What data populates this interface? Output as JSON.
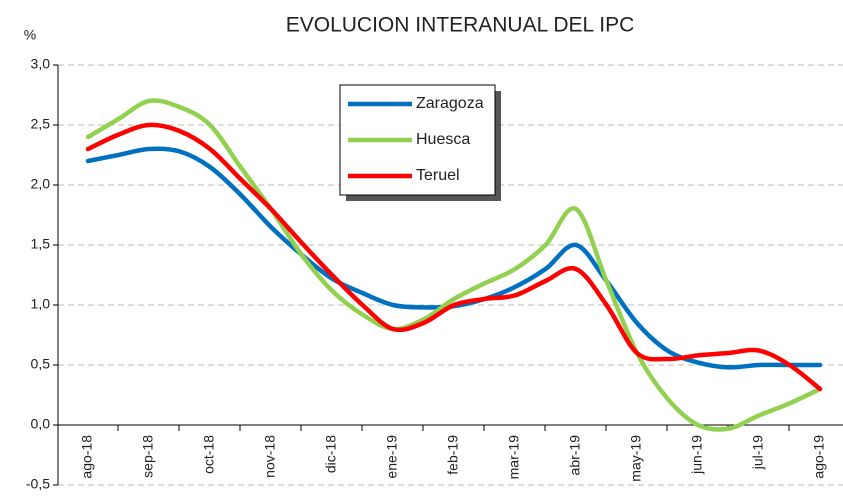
{
  "chart_data": {
    "type": "line",
    "title": "EVOLUCION INTERANUAL DEL IPC",
    "ylabel": "%",
    "categories": [
      "ago-18",
      null,
      "sep-18",
      null,
      "oct-18",
      null,
      "nov-18",
      null,
      "dic-18",
      null,
      "ene-19",
      null,
      "feb-19",
      null,
      "mar-19",
      null,
      "abr-19",
      null,
      "may-19",
      null,
      "jun-19",
      null,
      "jul-19",
      null,
      "ago-19"
    ],
    "series": [
      {
        "name": "Zaragoza",
        "color": "#0070c0",
        "values": [
          2.2,
          2.25,
          2.3,
          2.28,
          2.15,
          1.92,
          1.65,
          1.42,
          1.22,
          1.1,
          1.0,
          0.98,
          0.99,
          1.05,
          1.15,
          1.3,
          1.5,
          1.2,
          0.85,
          0.62,
          0.52,
          0.48,
          0.5,
          0.5,
          0.5
        ]
      },
      {
        "name": "Huesca",
        "color": "#92d050",
        "values": [
          2.4,
          2.55,
          2.7,
          2.65,
          2.5,
          2.15,
          1.8,
          1.42,
          1.12,
          0.92,
          0.8,
          0.88,
          1.05,
          1.18,
          1.3,
          1.5,
          1.8,
          1.2,
          0.6,
          0.22,
          0.0,
          -0.03,
          0.08,
          0.18,
          0.3
        ]
      },
      {
        "name": "Teruel",
        "color": "#ff0000",
        "values": [
          2.3,
          2.42,
          2.5,
          2.45,
          2.3,
          2.05,
          1.8,
          1.52,
          1.25,
          1.0,
          0.8,
          0.85,
          1.0,
          1.05,
          1.08,
          1.2,
          1.3,
          1.0,
          0.6,
          0.55,
          0.58,
          0.6,
          0.62,
          0.5,
          0.3
        ]
      }
    ],
    "ylim": [
      -0.5,
      3.0
    ],
    "yticks": [
      {
        "value": -0.5,
        "label": "-0,5"
      },
      {
        "value": 0,
        "label": "0,0"
      },
      {
        "value": 0.5,
        "label": "0,5"
      },
      {
        "value": 1.0,
        "label": "1,0"
      },
      {
        "value": 1.5,
        "label": "1,5"
      },
      {
        "value": 2.0,
        "label": "2,0"
      },
      {
        "value": 2.5,
        "label": "2,5"
      },
      {
        "value": 3.0,
        "label": "3,0"
      }
    ],
    "grid": true
  }
}
